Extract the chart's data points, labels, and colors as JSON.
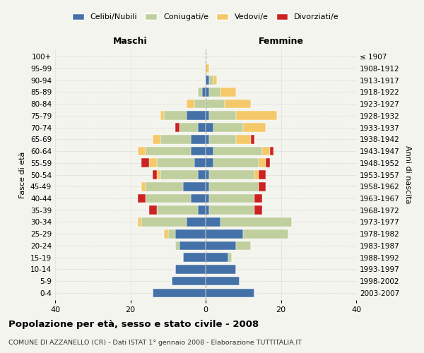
{
  "age_groups": [
    "0-4",
    "5-9",
    "10-14",
    "15-19",
    "20-24",
    "25-29",
    "30-34",
    "35-39",
    "40-44",
    "45-49",
    "50-54",
    "55-59",
    "60-64",
    "65-69",
    "70-74",
    "75-79",
    "80-84",
    "85-89",
    "90-94",
    "95-99",
    "100+"
  ],
  "birth_years": [
    "2003-2007",
    "1998-2002",
    "1993-1997",
    "1988-1992",
    "1983-1987",
    "1978-1982",
    "1973-1977",
    "1968-1972",
    "1963-1967",
    "1958-1962",
    "1953-1957",
    "1948-1952",
    "1943-1947",
    "1938-1942",
    "1933-1937",
    "1928-1932",
    "1923-1927",
    "1918-1922",
    "1913-1917",
    "1908-1912",
    "≤ 1907"
  ],
  "male_celibe": [
    14,
    9,
    8,
    6,
    7,
    8,
    5,
    2,
    4,
    6,
    2,
    3,
    4,
    4,
    2,
    5,
    0,
    1,
    0,
    0,
    0
  ],
  "male_coniugato": [
    0,
    0,
    0,
    0,
    1,
    2,
    12,
    11,
    12,
    10,
    10,
    10,
    12,
    8,
    5,
    6,
    3,
    1,
    0,
    0,
    0
  ],
  "male_vedovo": [
    0,
    0,
    0,
    0,
    0,
    1,
    1,
    0,
    0,
    1,
    1,
    2,
    2,
    2,
    0,
    1,
    2,
    0,
    0,
    0,
    0
  ],
  "male_divorziato": [
    0,
    0,
    0,
    0,
    0,
    0,
    0,
    2,
    2,
    0,
    1,
    2,
    0,
    0,
    1,
    0,
    0,
    0,
    0,
    0,
    0
  ],
  "female_nubile": [
    13,
    9,
    8,
    6,
    8,
    10,
    4,
    1,
    1,
    1,
    1,
    2,
    2,
    1,
    2,
    1,
    0,
    1,
    1,
    0,
    0
  ],
  "female_coniugata": [
    0,
    0,
    0,
    1,
    4,
    12,
    19,
    12,
    12,
    13,
    12,
    12,
    13,
    7,
    8,
    7,
    5,
    3,
    1,
    0,
    0
  ],
  "female_vedova": [
    0,
    0,
    0,
    0,
    0,
    0,
    0,
    0,
    0,
    0,
    1,
    2,
    2,
    4,
    6,
    11,
    7,
    4,
    1,
    1,
    0
  ],
  "female_divorziata": [
    0,
    0,
    0,
    0,
    0,
    0,
    0,
    2,
    2,
    2,
    2,
    1,
    1,
    1,
    0,
    0,
    0,
    0,
    0,
    0,
    0
  ],
  "colors": {
    "celibe": "#4472a8",
    "coniugato": "#bfcf9e",
    "vedovo": "#f5c96a",
    "divorziato": "#cc2222"
  },
  "xlim": 40,
  "title": "Popolazione per età, sesso e stato civile - 2008",
  "subtitle": "COMUNE DI AZZANELLO (CR) - Dati ISTAT 1° gennaio 2008 - Elaborazione TUTTITALIA.IT",
  "ylabel_left": "Fasce di età",
  "ylabel_right": "Anni di nascita",
  "xlabel_left": "Maschi",
  "xlabel_right": "Femmine",
  "bg_color": "#f4f4ee",
  "grid_color": "#cccccc",
  "bar_height": 0.75
}
